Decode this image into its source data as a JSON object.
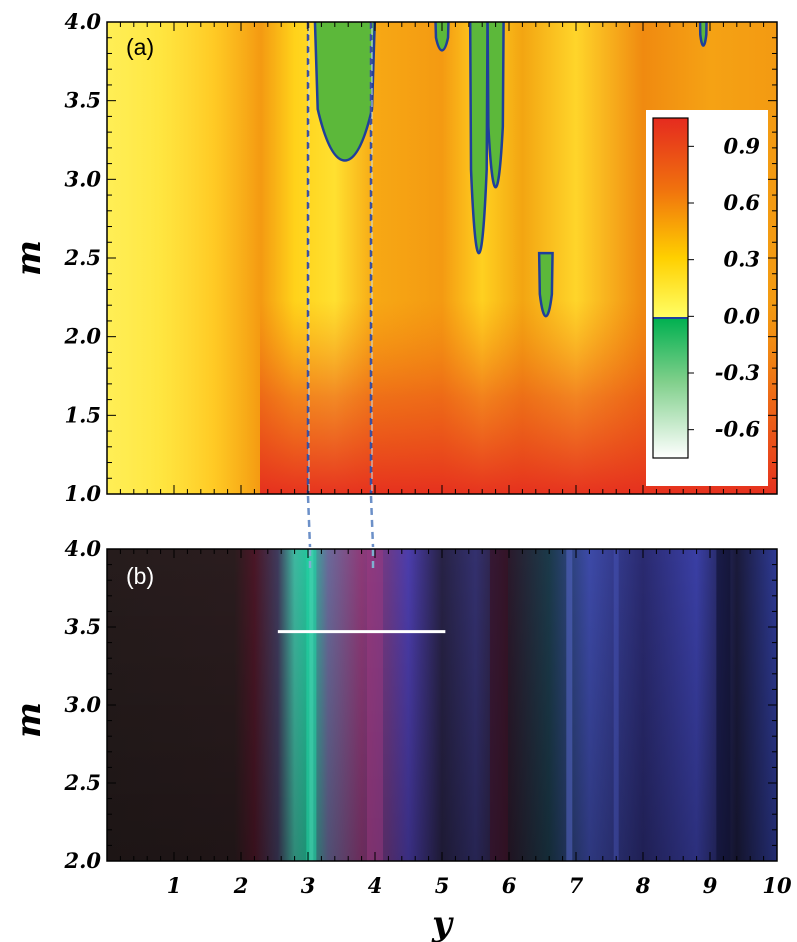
{
  "chart_data": [
    {
      "type": "heatmap",
      "panel_label": "(a)",
      "xlim": [
        0,
        10
      ],
      "ylim": [
        1.0,
        4.0
      ],
      "ylabel": "m",
      "yticks": [
        "1.0",
        "1.5",
        "2.0",
        "2.5",
        "3.0",
        "3.5",
        "4.0"
      ],
      "ytick_values": [
        1.0,
        1.5,
        2.0,
        2.5,
        3.0,
        3.5,
        4.0
      ],
      "reference_lines_y": [
        3.0,
        4.0
      ],
      "colorbar": {
        "ticks": [
          "0.9",
          "0.6",
          "0.3",
          "0.0",
          "-0.3",
          "-0.6"
        ],
        "tick_values": [
          0.9,
          0.6,
          0.3,
          0.0,
          -0.3,
          -0.6
        ],
        "range": [
          -0.75,
          1.05
        ],
        "colors_positive": [
          "#ffff66",
          "#ffd000",
          "#f0700e",
          "#e52b1f"
        ],
        "colors_negative": [
          "#00b050",
          "#7fcf8a",
          "#ffffff"
        ],
        "placement": "inside-right"
      },
      "negative_regions": [
        {
          "y_center": 3.55,
          "m_top": 4.0,
          "m_bottom": 3.12
        },
        {
          "y_center": 5.0,
          "m_top": 4.0,
          "m_bottom": 3.82
        },
        {
          "y_center": 5.55,
          "m_top": 4.0,
          "m_bottom": 2.53
        },
        {
          "y_center": 5.8,
          "m_top": 4.0,
          "m_bottom": 2.95
        },
        {
          "y_center": 6.55,
          "m_top": 2.48,
          "m_bottom": 2.13
        },
        {
          "y_center": 8.9,
          "m_top": 4.0,
          "m_bottom": 3.85
        }
      ]
    },
    {
      "type": "heatmap",
      "panel_label": "(b)",
      "xlim": [
        0,
        10
      ],
      "ylim": [
        2.0,
        4.0
      ],
      "xlabel": "y",
      "ylabel": "m",
      "xticks": [
        "1",
        "2",
        "3",
        "4",
        "5",
        "6",
        "7",
        "8",
        "9",
        "10"
      ],
      "xtick_values": [
        1,
        2,
        3,
        4,
        5,
        6,
        7,
        8,
        9,
        10
      ],
      "yticks": [
        "2.0",
        "2.5",
        "3.0",
        "3.5",
        "4.0"
      ],
      "ytick_values": [
        2.0,
        2.5,
        3.0,
        3.5,
        4.0
      ],
      "annotation_segment": {
        "y_start": 2.55,
        "y_end": 5.05,
        "m": 3.47
      }
    }
  ]
}
